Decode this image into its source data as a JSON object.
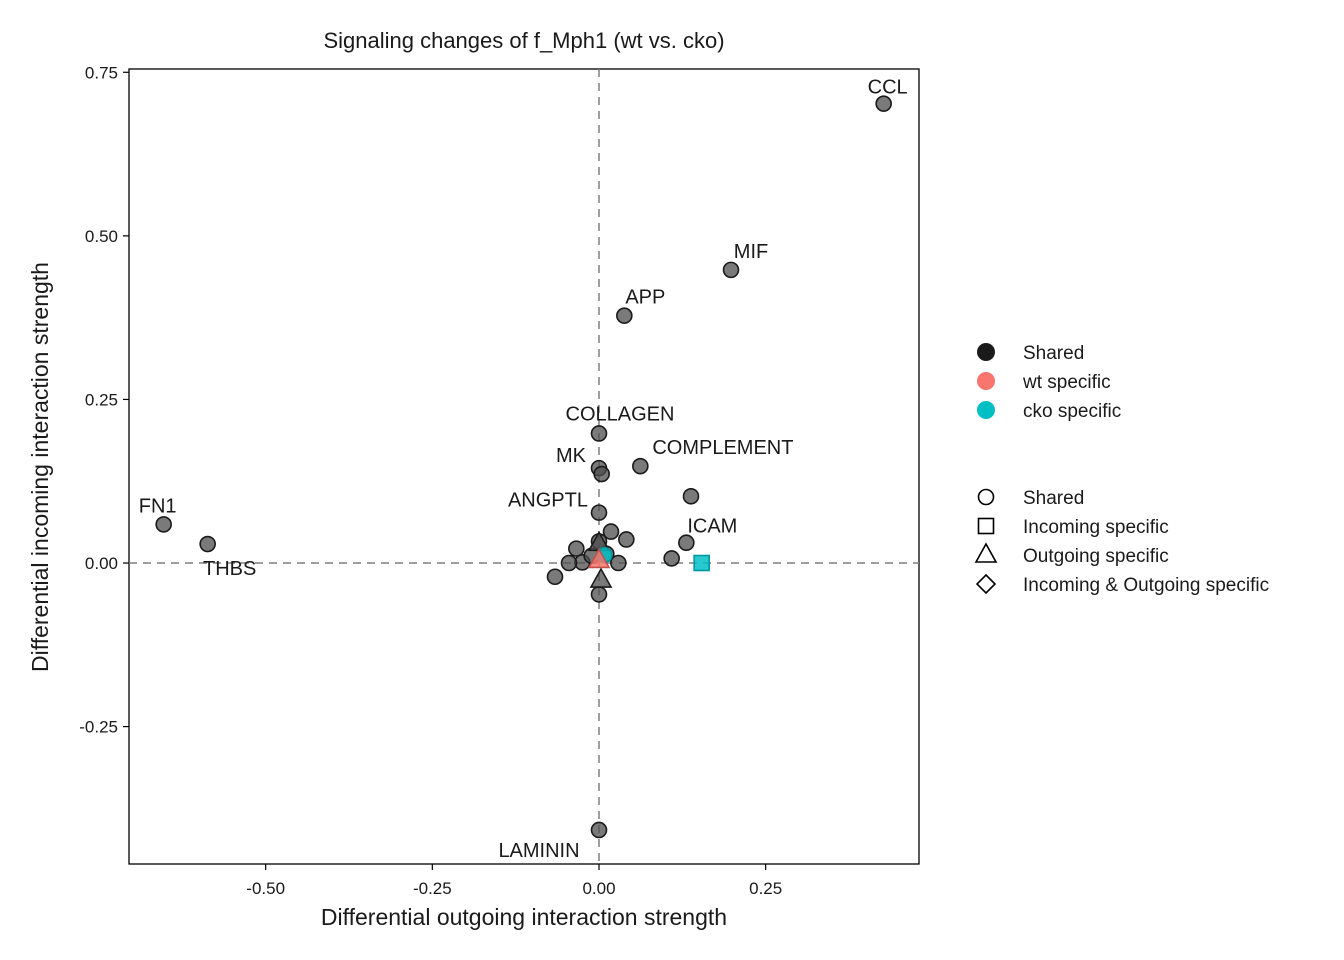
{
  "chart_data": {
    "type": "scatter",
    "title": "Signaling changes of f_Mph1 (wt vs. cko)",
    "xlabel": "Differential outgoing interaction strength",
    "ylabel": "Differential incoming interaction strength",
    "xlim": [
      -0.705,
      0.48
    ],
    "ylim": [
      -0.46,
      0.755
    ],
    "xticks": [
      -0.5,
      -0.25,
      0.0,
      0.25
    ],
    "xtick_labels": [
      "-0.50",
      "-0.25",
      "0.00",
      "0.25"
    ],
    "yticks": [
      -0.25,
      0.0,
      0.25,
      0.5,
      0.75
    ],
    "ytick_labels": [
      "-0.25",
      "0.00",
      "0.25",
      "0.50",
      "0.75"
    ],
    "reference_lines": {
      "x": 0,
      "y": 0,
      "style": "dashed"
    },
    "grid": false,
    "legend_placement": "right",
    "legend_color": {
      "items": [
        {
          "label": "Shared",
          "color": "#1a1a1a"
        },
        {
          "label": "wt specific",
          "color": "#F8766D"
        },
        {
          "label": "cko specific",
          "color": "#00BFC4"
        }
      ]
    },
    "legend_shape": {
      "items": [
        {
          "label": "Shared",
          "shape": "circle"
        },
        {
          "label": "Incoming specific",
          "shape": "square"
        },
        {
          "label": "Outgoing specific",
          "shape": "triangle"
        },
        {
          "label": "Incoming & Outgoing specific",
          "shape": "diamond"
        }
      ]
    },
    "points": [
      {
        "x": 0.427,
        "y": 0.702,
        "label": "CCL",
        "group": "Shared",
        "shape": "circle"
      },
      {
        "x": 0.198,
        "y": 0.448,
        "label": "MIF",
        "group": "Shared",
        "shape": "circle"
      },
      {
        "x": 0.038,
        "y": 0.378,
        "label": "APP",
        "group": "Shared",
        "shape": "circle"
      },
      {
        "x": 0.0,
        "y": 0.198,
        "label": "COLLAGEN",
        "group": "Shared",
        "shape": "circle"
      },
      {
        "x": 0.062,
        "y": 0.148,
        "label": "COMPLEMENT",
        "group": "Shared",
        "shape": "circle"
      },
      {
        "x": 0.0,
        "y": 0.145,
        "label": "MK",
        "group": "Shared",
        "shape": "circle"
      },
      {
        "x": 0.004,
        "y": 0.136,
        "label": "",
        "group": "Shared",
        "shape": "circle"
      },
      {
        "x": 0.138,
        "y": 0.102,
        "label": "",
        "group": "Shared",
        "shape": "circle"
      },
      {
        "x": 0.0,
        "y": 0.077,
        "label": "ANGPTL",
        "group": "Shared",
        "shape": "circle"
      },
      {
        "x": 0.131,
        "y": 0.031,
        "label": "ICAM",
        "group": "Shared",
        "shape": "circle"
      },
      {
        "x": 0.109,
        "y": 0.007,
        "label": "",
        "group": "Shared",
        "shape": "circle"
      },
      {
        "x": -0.653,
        "y": 0.059,
        "label": "FN1",
        "group": "Shared",
        "shape": "circle"
      },
      {
        "x": -0.587,
        "y": 0.029,
        "label": "THBS",
        "group": "Shared",
        "shape": "circle"
      },
      {
        "x": 0.018,
        "y": 0.048,
        "label": "",
        "group": "Shared",
        "shape": "circle"
      },
      {
        "x": 0.041,
        "y": 0.036,
        "label": "",
        "group": "Shared",
        "shape": "circle"
      },
      {
        "x": 0.0,
        "y": 0.033,
        "label": "",
        "group": "Shared",
        "shape": "circle"
      },
      {
        "x": -0.034,
        "y": 0.022,
        "label": "",
        "group": "Shared",
        "shape": "circle"
      },
      {
        "x": -0.025,
        "y": 0.001,
        "label": "",
        "group": "Shared",
        "shape": "circle"
      },
      {
        "x": -0.045,
        "y": 0.0,
        "label": "",
        "group": "Shared",
        "shape": "circle"
      },
      {
        "x": -0.011,
        "y": 0.011,
        "label": "",
        "group": "Shared",
        "shape": "circle"
      },
      {
        "x": 0.029,
        "y": 0.0,
        "label": "",
        "group": "Shared",
        "shape": "circle"
      },
      {
        "x": 0.011,
        "y": 0.014,
        "label": "",
        "group": "Shared",
        "shape": "circle"
      },
      {
        "x": -0.066,
        "y": -0.021,
        "label": "",
        "group": "Shared",
        "shape": "circle"
      },
      {
        "x": 0.0,
        "y": -0.048,
        "label": "",
        "group": "Shared",
        "shape": "circle"
      },
      {
        "x": 0.0,
        "y": -0.408,
        "label": "LAMININ",
        "group": "Shared",
        "shape": "circle"
      },
      {
        "x": 0.0,
        "y": 0.03,
        "label": "",
        "group": "Shared",
        "shape": "triangle"
      },
      {
        "x": 0.003,
        "y": -0.026,
        "label": "",
        "group": "Shared",
        "shape": "triangle"
      },
      {
        "x": 0.008,
        "y": 0.012,
        "label": "",
        "group": "cko specific",
        "shape": "circle"
      },
      {
        "x": 0.154,
        "y": 0.0,
        "label": "",
        "group": "cko specific",
        "shape": "square"
      },
      {
        "x": 0.0,
        "y": 0.004,
        "label": "",
        "group": "wt specific",
        "shape": "triangle"
      }
    ]
  }
}
